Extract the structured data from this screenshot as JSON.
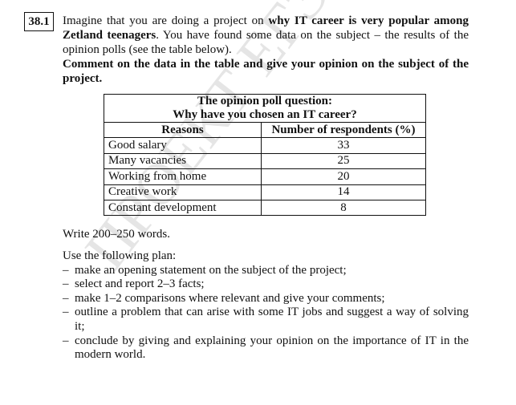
{
  "task_number": "38.1",
  "intro": {
    "p1": "Imagine that you are doing a project on ",
    "p1_bold": "why IT career is very popular among Zetland teenagers",
    "p1_rest": ". You have found some data on the subject – the results of the opinion polls (see the table below).",
    "instruction": "Comment on the data in the table and give your opinion on the subject of the project."
  },
  "table": {
    "title_line1": "The opinion poll question:",
    "title_line2": "Why have you chosen an IT career?",
    "headers": [
      "Reasons",
      "Number of respondents (%)"
    ],
    "rows": [
      {
        "reason": "Good salary",
        "value": "33"
      },
      {
        "reason": "Many vacancies",
        "value": "25"
      },
      {
        "reason": "Working from home",
        "value": "20"
      },
      {
        "reason": "Creative work",
        "value": "14"
      },
      {
        "reason": "Constant development",
        "value": "8"
      }
    ]
  },
  "write": "Write 200–250 words.",
  "plan": {
    "intro": "Use the following plan:",
    "items": [
      "make an opening statement on the subject of the project;",
      "select and report 2–3 facts;",
      "make 1–2 comparisons where relevant and give your comments;",
      "outline a problem that can arise with some IT jobs and suggest a way of solving it;",
      "conclude by giving and explaining your opinion on the importance of IT in the modern world."
    ]
  },
  "watermark": "ПРОЕКТ ЕГЭ 2024"
}
